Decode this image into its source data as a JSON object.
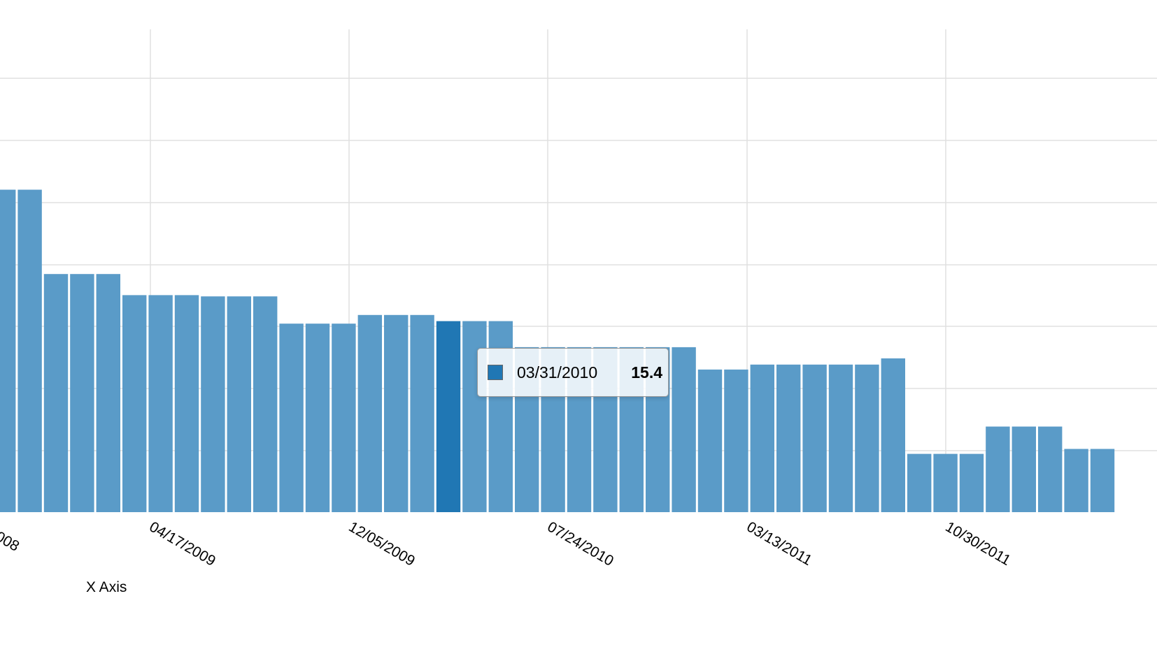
{
  "colors": {
    "bar": "#5a9bc8",
    "bar_highlight": "#2077b4",
    "grid": "#e0e0e0"
  },
  "chart_data": {
    "type": "bar",
    "xlabel": "X Axis",
    "grid": true,
    "x_tick_labels": [
      "04/17/2009",
      "12/05/2009",
      "07/24/2010",
      "03/13/2011",
      "10/30/2011"
    ],
    "x_tick_label_partial": "008",
    "values": [
      26,
      26,
      19.2,
      19.2,
      19.2,
      17.5,
      17.5,
      17.5,
      17.4,
      17.4,
      17.4,
      15.2,
      15.2,
      15.2,
      15.9,
      15.9,
      15.9,
      15.4,
      15.4,
      15.4,
      13.3,
      13.3,
      13.3,
      13.3,
      13.3,
      13.3,
      13.3,
      11.5,
      11.5,
      11.9,
      11.9,
      11.9,
      11.9,
      11.9,
      12.4,
      4.7,
      4.7,
      4.7,
      6.9,
      6.9,
      6.9,
      5.1,
      5.1
    ],
    "highlighted_index": 17
  },
  "tooltip": {
    "date": "03/31/2010",
    "value": "15.4"
  }
}
